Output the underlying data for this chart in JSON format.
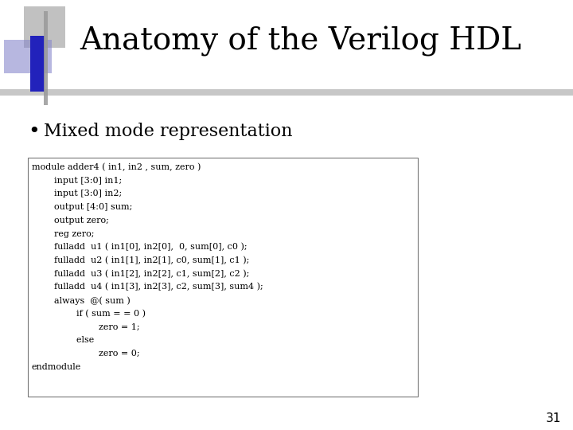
{
  "title": "Anatomy of the Verilog HDL",
  "title_fontsize": 28,
  "title_font": "serif",
  "background_color": "#ffffff",
  "bullet_text": "Mixed mode representation",
  "bullet_fontsize": 16,
  "code_lines": [
    "module adder4 ( in1, in2 , sum, zero )",
    "        input [3:0] in1;",
    "        input [3:0] in2;",
    "        output [4:0] sum;",
    "        output zero;",
    "        reg zero;",
    "        fulladd  u1 ( in1[0], in2[0],  0, sum[0], c0 );",
    "        fulladd  u2 ( in1[1], in2[1], c0, sum[1], c1 );",
    "        fulladd  u3 ( in1[2], in2[2], c1, sum[2], c2 );",
    "        fulladd  u4 ( in1[3], in2[3], c2, sum[3], sum4 );",
    "        always  @( sum )",
    "                if ( sum = = 0 )",
    "                        zero = 1;",
    "                else",
    "                        zero = 0;",
    "endmodule"
  ],
  "code_fontsize": 8,
  "code_font": "serif",
  "page_number": "31",
  "box_facecolor": "#ffffff",
  "box_edgecolor": "#777777",
  "gray_bar_color": "#999999",
  "blue_rect_color": "#2222bb",
  "light_blue_color": "#8888cc",
  "light_gray_color": "#bbbbbb",
  "header_line_color": "#aaaaaa"
}
